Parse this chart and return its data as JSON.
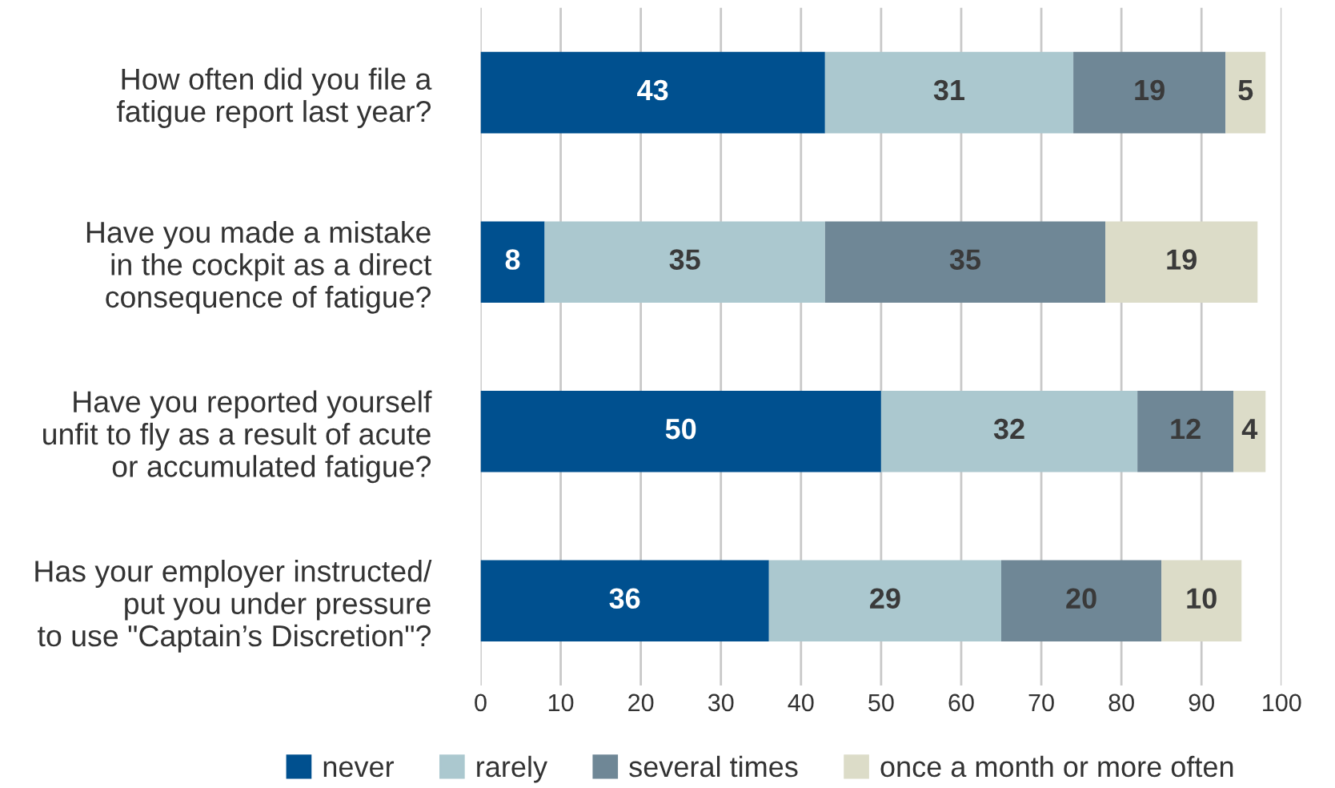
{
  "chart_data": {
    "type": "bar",
    "orientation": "horizontal",
    "stacked": true,
    "categories": [
      "How often did you file a\nfatigue report last year?",
      "Have you made a mistake\nin the cockpit as a direct\nconsequence of fatigue?",
      "Have you reported yourself\nunfit to fly as a result of acute\nor accumulated fatigue?",
      "Has your employer instructed/\nput you under pressure\nto use \"Captain’s Discretion\"?"
    ],
    "series": [
      {
        "name": "never",
        "color": "#00508f",
        "values": [
          43,
          8,
          50,
          36
        ]
      },
      {
        "name": "rarely",
        "color": "#abc8cf",
        "values": [
          31,
          35,
          32,
          29
        ]
      },
      {
        "name": "several times",
        "color": "#6f8796",
        "values": [
          19,
          35,
          12,
          20
        ]
      },
      {
        "name": "once a month or more often",
        "color": "#dcdcc8",
        "values": [
          5,
          19,
          4,
          10
        ]
      }
    ],
    "xlim": [
      0,
      100
    ],
    "xticks": [
      0,
      10,
      20,
      30,
      40,
      50,
      60,
      70,
      80,
      90,
      100
    ],
    "grid": "x",
    "legend": "bottom",
    "data_labels": true
  }
}
